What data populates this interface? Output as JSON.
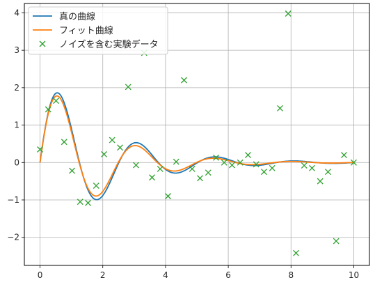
{
  "chart_data": {
    "type": "line",
    "title": "",
    "xlabel": "",
    "ylabel": "",
    "xlim": [
      -0.5,
      10.5
    ],
    "ylim": [
      -2.75,
      4.25
    ],
    "xticks": [
      0,
      2,
      4,
      6,
      8,
      10
    ],
    "yticks": [
      -2,
      -1,
      0,
      1,
      2,
      3,
      4
    ],
    "xtick_labels": [
      "0",
      "2",
      "4",
      "6",
      "8",
      "10"
    ],
    "ytick_labels": [
      "−2",
      "−1",
      "0",
      "1",
      "2",
      "3",
      "4"
    ],
    "grid": true,
    "legend_position": "top-left",
    "series": [
      {
        "name": "真の曲線",
        "kind": "line",
        "color": "#1f77b4",
        "model": {
          "amplitude": 2.5,
          "decay": 0.5,
          "omega": 2.5
        },
        "x": [
          0,
          0.25,
          0.5,
          0.75,
          1.0,
          1.25,
          1.5,
          1.75,
          2.0,
          2.25,
          2.5,
          2.75,
          3.0,
          3.25,
          3.5,
          3.75,
          4.0,
          4.25,
          4.5,
          4.75,
          5.0,
          5.5,
          6.0,
          6.5,
          7.0,
          7.5,
          8.0,
          8.5,
          9.0,
          9.5,
          10.0
        ],
        "y": [
          0,
          1.28,
          1.84,
          1.54,
          0.58,
          -0.46,
          -1.11,
          -1.08,
          -0.5,
          0.26,
          0.75,
          0.69,
          0.2,
          -0.29,
          -0.53,
          -0.45,
          -0.07,
          0.26,
          0.34,
          0.19,
          -0.03,
          -0.19,
          -0.1,
          0.06,
          0.08,
          -0.01,
          -0.05,
          -0.01,
          0.03,
          0.01,
          -0.01
        ]
      },
      {
        "name": "フィット曲線",
        "kind": "line",
        "color": "#ff7f0e",
        "model": {
          "amplitude": 2.45,
          "decay": 0.55,
          "omega": 2.52
        },
        "x": [
          0,
          0.25,
          0.5,
          0.75,
          1.0,
          1.25,
          1.5,
          1.75,
          2.0,
          2.25,
          2.5,
          2.75,
          3.0,
          3.25,
          3.5,
          3.75,
          4.0,
          4.25,
          4.5,
          4.75,
          5.0,
          5.5,
          6.0,
          6.5,
          7.0,
          7.5,
          8.0,
          8.5,
          9.0,
          9.5,
          10.0
        ],
        "y": [
          0,
          1.24,
          1.77,
          1.46,
          0.54,
          -0.45,
          -1.05,
          -0.99,
          -0.44,
          0.25,
          0.66,
          0.58,
          0.16,
          -0.26,
          -0.44,
          -0.36,
          -0.05,
          0.21,
          0.26,
          0.14,
          -0.03,
          -0.14,
          -0.07,
          0.04,
          0.05,
          -0.01,
          -0.03,
          -0.01,
          0.02,
          0.0,
          -0.01
        ]
      },
      {
        "name": "ノイズを含む実験データ",
        "kind": "scatter",
        "marker": "x",
        "color": "#2ca02c",
        "x": [
          0.0,
          0.26,
          0.51,
          0.77,
          1.02,
          1.28,
          1.53,
          1.79,
          2.04,
          2.3,
          2.55,
          2.81,
          3.06,
          3.32,
          3.57,
          3.83,
          4.08,
          4.34,
          4.59,
          4.85,
          5.1,
          5.36,
          5.61,
          5.87,
          6.12,
          6.38,
          6.63,
          6.89,
          7.14,
          7.4,
          7.65,
          7.91,
          8.16,
          8.42,
          8.67,
          8.93,
          9.18,
          9.44,
          9.69,
          10.0
        ],
        "y": [
          0.35,
          1.42,
          1.65,
          0.55,
          -0.22,
          -1.05,
          -1.08,
          -0.62,
          0.22,
          0.6,
          0.4,
          2.02,
          -0.07,
          2.93,
          -0.4,
          -0.17,
          -0.9,
          0.02,
          2.2,
          -0.17,
          -0.42,
          -0.27,
          0.13,
          0.0,
          -0.07,
          0.0,
          0.2,
          -0.05,
          -0.25,
          -0.15,
          1.45,
          3.98,
          -2.42,
          -0.08,
          -0.15,
          -0.5,
          -0.25,
          -2.1,
          0.2,
          0.0
        ]
      }
    ]
  }
}
